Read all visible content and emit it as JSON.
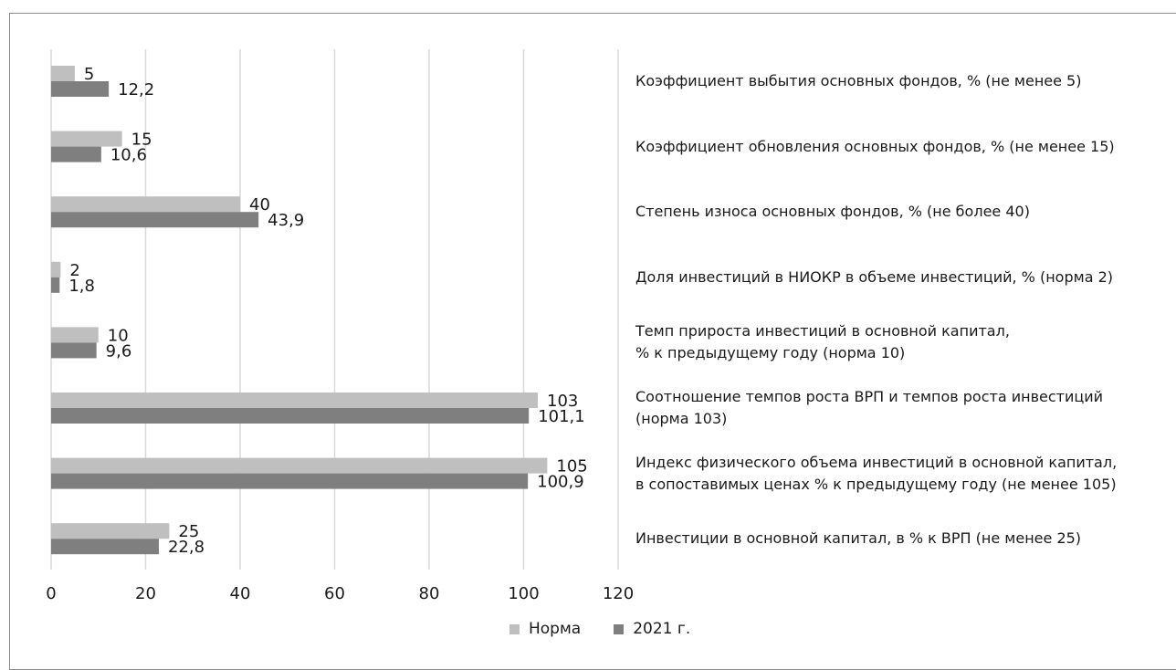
{
  "chart_data": {
    "type": "bar",
    "orientation": "horizontal",
    "categories": [
      [
        "Коэффициент выбытия основных фондов, % (не менее 5)"
      ],
      [
        "Коэффициент обновления основных фондов, % (не менее 15)"
      ],
      [
        "Степень износа основных фондов, % (не более 40)"
      ],
      [
        "Доля инвестиций в НИОКР в объеме инвестиций, % (норма 2)"
      ],
      [
        "Темп прироста инвестиций в основной капитал,",
        "% к предыдущему году (норма 10)"
      ],
      [
        "Соотношение темпов роста ВРП и темпов роста инвестиций",
        "(норма 103)"
      ],
      [
        "Индекс физического объема инвестиций в основной капитал,",
        "в сопоставимых ценах % к предыдущему году (не менее 105)"
      ],
      [
        "Инвестиции в основной капитал, в % к ВРП (не менее 25)"
      ]
    ],
    "series": [
      {
        "name": "Норма",
        "color": "#bfbfbf",
        "values": [
          5,
          15,
          40,
          2,
          10,
          103,
          105,
          25
        ],
        "labels": [
          "5",
          "15",
          "40",
          "2",
          "10",
          "103",
          "105",
          "25"
        ]
      },
      {
        "name": "2021 г.",
        "color": "#7f7f7f",
        "values": [
          12.2,
          10.6,
          43.9,
          1.8,
          9.6,
          101.1,
          100.9,
          22.8
        ],
        "labels": [
          "12,2",
          "10,6",
          "43,9",
          "1,8",
          "9,6",
          "101,1",
          "100,9",
          "22,8"
        ]
      }
    ],
    "xlim": [
      0,
      120
    ],
    "xticks": [
      "0",
      "20",
      "40",
      "60",
      "80",
      "100",
      "120"
    ],
    "grid": true,
    "legend_position": "bottom"
  }
}
